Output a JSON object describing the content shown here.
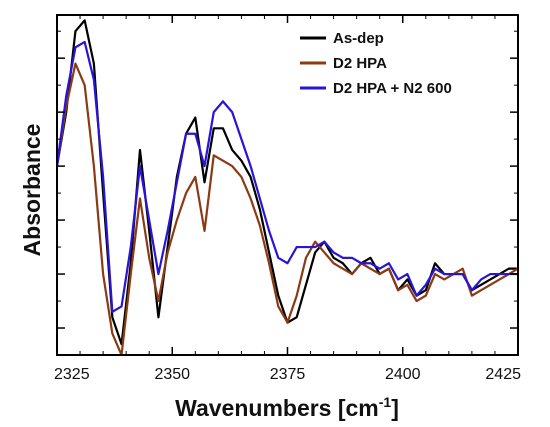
{
  "chart_data": {
    "type": "line",
    "xlabel": "Wavenumbers [cm",
    "xlabel_sup": "-1",
    "xlabel_close": "]",
    "ylabel": "Absorbance",
    "xlim": [
      2325,
      2425
    ],
    "ylim": [
      -0.5,
      5.8
    ],
    "x_ticks": [
      2325,
      2350,
      2375,
      2400,
      2425
    ],
    "x_tick_labels": [
      "2325",
      "2350",
      "2375",
      "2400",
      "2425"
    ],
    "y_tick_labels_shown": false,
    "grid": false,
    "legend_position": "top-right",
    "series": [
      {
        "name": "As-dep",
        "color": "#000000",
        "x": [
          2325,
          2327,
          2329,
          2331,
          2333,
          2335,
          2337,
          2339,
          2341,
          2343,
          2345,
          2347,
          2349,
          2351,
          2353,
          2355,
          2357,
          2359,
          2361,
          2363,
          2365,
          2367,
          2369,
          2371,
          2373,
          2375,
          2377,
          2379,
          2381,
          2383,
          2385,
          2387,
          2389,
          2391,
          2393,
          2395,
          2397,
          2399,
          2401,
          2403,
          2405,
          2407,
          2409,
          2411,
          2413,
          2415,
          2417,
          2419,
          2421,
          2423,
          2425
        ],
        "y": [
          3.0,
          4.0,
          5.5,
          5.7,
          4.9,
          2.5,
          0.2,
          -0.3,
          1.2,
          3.3,
          1.8,
          0.2,
          1.5,
          2.8,
          3.6,
          3.9,
          2.7,
          3.7,
          3.7,
          3.3,
          3.1,
          2.8,
          2.2,
          1.4,
          0.6,
          0.1,
          0.2,
          0.8,
          1.4,
          1.6,
          1.3,
          1.2,
          1.0,
          1.2,
          1.3,
          1.0,
          1.1,
          0.7,
          0.9,
          0.6,
          0.7,
          1.2,
          1.0,
          1.0,
          1.0,
          0.7,
          0.8,
          0.9,
          1.0,
          1.1,
          1.1
        ]
      },
      {
        "name": "D2 HPA",
        "color": "#8b3a14",
        "x": [
          2325,
          2327,
          2329,
          2331,
          2333,
          2335,
          2337,
          2339,
          2341,
          2343,
          2345,
          2347,
          2349,
          2351,
          2353,
          2355,
          2357,
          2359,
          2361,
          2363,
          2365,
          2367,
          2369,
          2371,
          2373,
          2375,
          2377,
          2379,
          2381,
          2383,
          2385,
          2387,
          2389,
          2391,
          2393,
          2395,
          2397,
          2399,
          2401,
          2403,
          2405,
          2407,
          2409,
          2411,
          2413,
          2415,
          2417,
          2419,
          2421,
          2423,
          2425
        ],
        "y": [
          3.0,
          4.1,
          4.9,
          4.5,
          3.0,
          1.0,
          -0.1,
          -0.5,
          1.0,
          2.4,
          1.3,
          0.5,
          1.4,
          2.0,
          2.5,
          2.8,
          1.8,
          3.2,
          3.1,
          3.0,
          2.8,
          2.4,
          1.9,
          1.2,
          0.4,
          0.1,
          0.6,
          1.3,
          1.6,
          1.4,
          1.2,
          1.1,
          1.0,
          1.2,
          1.1,
          1.0,
          1.1,
          0.7,
          0.8,
          0.5,
          0.6,
          1.0,
          0.9,
          1.0,
          1.1,
          0.6,
          0.7,
          0.8,
          0.9,
          1.0,
          1.1
        ]
      },
      {
        "name": "D2 HPA + N2 600",
        "color": "#2a14d8",
        "x": [
          2325,
          2327,
          2329,
          2331,
          2333,
          2335,
          2337,
          2339,
          2341,
          2343,
          2345,
          2347,
          2349,
          2351,
          2353,
          2355,
          2357,
          2359,
          2361,
          2363,
          2365,
          2367,
          2369,
          2371,
          2373,
          2375,
          2377,
          2379,
          2381,
          2383,
          2385,
          2387,
          2389,
          2391,
          2393,
          2395,
          2397,
          2399,
          2401,
          2403,
          2405,
          2407,
          2409,
          2411,
          2413,
          2415,
          2417,
          2419,
          2421,
          2423,
          2425
        ],
        "y": [
          3.0,
          4.3,
          5.2,
          5.3,
          4.6,
          2.8,
          0.3,
          0.4,
          1.5,
          3.0,
          2.0,
          1.0,
          1.8,
          2.7,
          3.6,
          3.6,
          3.0,
          4.0,
          4.2,
          4.0,
          3.5,
          3.0,
          2.4,
          1.8,
          1.3,
          1.2,
          1.5,
          1.5,
          1.5,
          1.6,
          1.4,
          1.3,
          1.3,
          1.2,
          1.2,
          1.1,
          1.2,
          0.9,
          1.0,
          0.6,
          0.8,
          1.1,
          1.0,
          1.0,
          1.0,
          0.7,
          0.9,
          1.0,
          1.0,
          1.0,
          1.0
        ]
      }
    ]
  }
}
